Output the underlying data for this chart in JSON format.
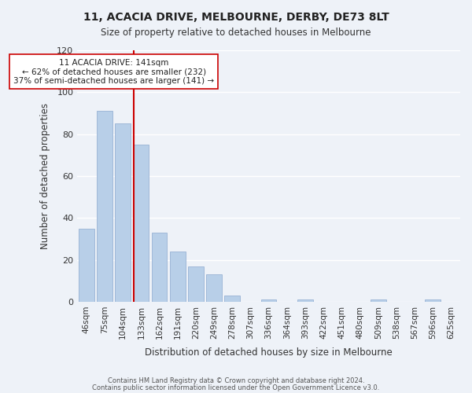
{
  "title1": "11, ACACIA DRIVE, MELBOURNE, DERBY, DE73 8LT",
  "title2": "Size of property relative to detached houses in Melbourne",
  "xlabel": "Distribution of detached houses by size in Melbourne",
  "ylabel": "Number of detached properties",
  "categories": [
    "46sqm",
    "75sqm",
    "104sqm",
    "133sqm",
    "162sqm",
    "191sqm",
    "220sqm",
    "249sqm",
    "278sqm",
    "307sqm",
    "336sqm",
    "364sqm",
    "393sqm",
    "422sqm",
    "451sqm",
    "480sqm",
    "509sqm",
    "538sqm",
    "567sqm",
    "596sqm",
    "625sqm"
  ],
  "values": [
    35,
    91,
    85,
    75,
    33,
    24,
    17,
    13,
    3,
    0,
    1,
    0,
    1,
    0,
    0,
    0,
    1,
    0,
    0,
    1,
    0
  ],
  "bar_color": "#b8cfe8",
  "bar_edge_color": "#a0b8d8",
  "marker_index": 3,
  "marker_color": "#cc0000",
  "annotation_title": "11 ACACIA DRIVE: 141sqm",
  "annotation_line1": "← 62% of detached houses are smaller (232)",
  "annotation_line2": "37% of semi-detached houses are larger (141) →",
  "annotation_box_color": "#ffffff",
  "annotation_box_edge": "#cc0000",
  "ylim": [
    0,
    120
  ],
  "yticks": [
    0,
    20,
    40,
    60,
    80,
    100,
    120
  ],
  "footer1": "Contains HM Land Registry data © Crown copyright and database right 2024.",
  "footer2": "Contains public sector information licensed under the Open Government Licence v3.0.",
  "bg_color": "#eef2f8",
  "grid_color": "#ffffff"
}
